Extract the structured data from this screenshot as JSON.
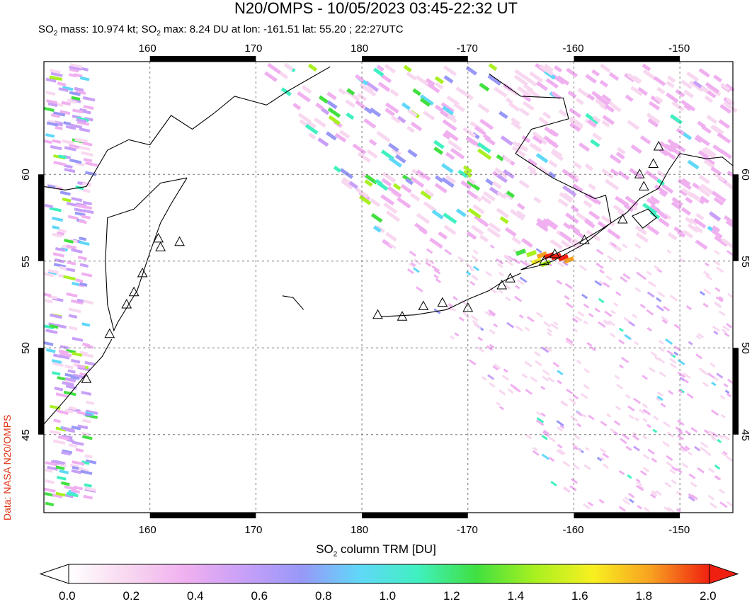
{
  "header": {
    "title": "N20/OMPS - 10/05/2023 03:45-22:32 UT",
    "subtitle_parts": [
      "SO",
      "2",
      " mass: 10.974 kt; SO",
      "2",
      " max: 8.24 DU at lon: -161.51 lat: 55.20 ; 22:27UTC"
    ]
  },
  "credit": "Data: NASA N20/OMPS",
  "map": {
    "lon_ticks": [
      "160",
      "170",
      "180",
      "-170",
      "-160",
      "-150"
    ],
    "lat_ticks": [
      "60",
      "55",
      "50",
      "45"
    ],
    "lon_range": [
      150,
      215
    ],
    "lat_range": [
      40.5,
      66.5
    ],
    "max_marker": {
      "lon": -161.51,
      "lat": 55.2
    }
  },
  "colorbar": {
    "title_parts": [
      "SO",
      "2",
      " column TRM [DU]"
    ],
    "tick_labels": [
      "0.0",
      "0.2",
      "0.4",
      "0.6",
      "0.8",
      "1.0",
      "1.2",
      "1.4",
      "1.6",
      "1.8",
      "2.0"
    ],
    "range": [
      0,
      2
    ],
    "colors": [
      "#ffffff",
      "#f8d8f0",
      "#f0b0f0",
      "#c8a0f8",
      "#9898f8",
      "#60d8f8",
      "#40f0c0",
      "#40e040",
      "#a8f020",
      "#f8f020",
      "#f8a020",
      "#f02010"
    ]
  }
}
